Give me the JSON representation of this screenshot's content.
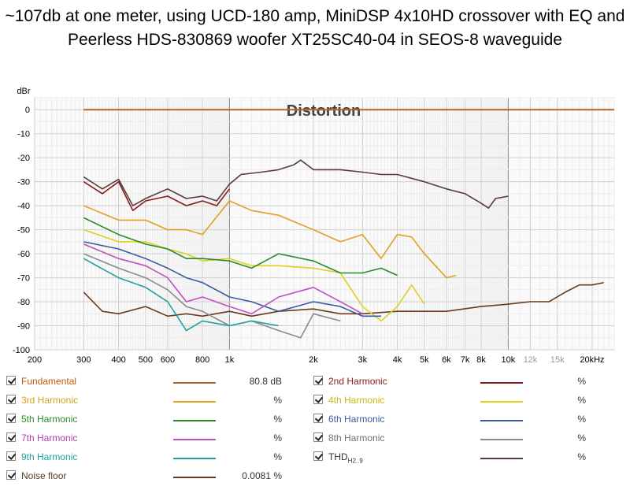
{
  "title": "~107db at one meter, using UCD-180 amp, MiniDSP 4x10HD crossover with EQ and Peerless HDS-830869 woofer XT25SC40-04 in SEOS-8 waveguide",
  "chart_data": {
    "type": "line",
    "title": "Distortion",
    "ylabel": "dBr",
    "xlabel": "Hz",
    "xscale": "log",
    "xlim": [
      200,
      24000
    ],
    "ylim": [
      -100,
      5
    ],
    "y_ticks": [
      0,
      -10,
      -20,
      -30,
      -40,
      -50,
      -60,
      -70,
      -80,
      -90,
      -100
    ],
    "x_ticks": [
      {
        "value": 200,
        "label": "200"
      },
      {
        "value": 300,
        "label": "300"
      },
      {
        "value": 400,
        "label": "400"
      },
      {
        "value": 500,
        "label": "500"
      },
      {
        "value": 600,
        "label": "600"
      },
      {
        "value": 800,
        "label": "800"
      },
      {
        "value": 1000,
        "label": "1k"
      },
      {
        "value": 2000,
        "label": "2k"
      },
      {
        "value": 3000,
        "label": "3k"
      },
      {
        "value": 4000,
        "label": "4k"
      },
      {
        "value": 5000,
        "label": "5k"
      },
      {
        "value": 6000,
        "label": "6k"
      },
      {
        "value": 7000,
        "label": "7k"
      },
      {
        "value": 8000,
        "label": "8k"
      },
      {
        "value": 10000,
        "label": "10k"
      },
      {
        "value": 12000,
        "label": "12k"
      },
      {
        "value": 15000,
        "label": "15k"
      },
      {
        "value": 20000,
        "label": "20kHz"
      }
    ],
    "series": [
      {
        "name": "Fundamental",
        "color": "#b0642a",
        "x": [
          300,
          24000
        ],
        "y": [
          0,
          0
        ]
      },
      {
        "name": "Noise floor",
        "color": "#6b3a1e",
        "x": [
          300,
          350,
          400,
          500,
          600,
          700,
          800,
          1000,
          1200,
          1500,
          2000,
          2500,
          3000,
          4000,
          5000,
          6000,
          8000,
          10000,
          12000,
          14000,
          16000,
          18000,
          20000,
          22000
        ],
        "y": [
          -76,
          -84,
          -85,
          -82,
          -86,
          -85,
          -86,
          -84,
          -86,
          -84,
          -83,
          -85,
          -85,
          -84,
          -84,
          -84,
          -82,
          -81,
          -80,
          -80,
          -76,
          -73,
          -73,
          -72
        ]
      },
      {
        "name": "THD",
        "color": "#5a3a3a",
        "x": [
          300,
          350,
          400,
          450,
          500,
          600,
          700,
          800,
          900,
          1000,
          1100,
          1300,
          1500,
          1700,
          1800,
          2000,
          2500,
          3000,
          3500,
          4000,
          5000,
          6000,
          7000,
          8000,
          8500,
          9000,
          10000
        ],
        "y": [
          -28,
          -33,
          -29,
          -40,
          -37,
          -33,
          -37,
          -36,
          -38,
          -31,
          -27,
          -26,
          -25,
          -23,
          -21,
          -25,
          -25,
          -26,
          -27,
          -27,
          -30,
          -33,
          -35,
          -39,
          -41,
          -37,
          -36
        ]
      },
      {
        "name": "2nd Harmonic",
        "color": "#8b1a1a",
        "x": [
          300,
          350,
          400,
          450,
          500,
          600,
          700,
          800,
          900,
          1000
        ],
        "y": [
          -30,
          -35,
          -30,
          -42,
          -38,
          -36,
          -40,
          -38,
          -40,
          -33
        ]
      },
      {
        "name": "3rd Harmonic",
        "color": "#e0a020",
        "x": [
          300,
          400,
          500,
          600,
          700,
          800,
          1000,
          1200,
          1500,
          2000,
          2500,
          3000,
          3500,
          4000,
          4500,
          5000,
          6000,
          6500
        ],
        "y": [
          -40,
          -46,
          -46,
          -50,
          -50,
          -52,
          -38,
          -42,
          -44,
          -50,
          -55,
          -52,
          -62,
          -52,
          -53,
          -60,
          -70,
          -69
        ]
      },
      {
        "name": "4th Harmonic",
        "color": "#e0d020",
        "x": [
          300,
          400,
          500,
          600,
          700,
          800,
          1000,
          1200,
          1500,
          2000,
          2500,
          3000,
          3500,
          4000,
          4500,
          5000
        ],
        "y": [
          -50,
          -55,
          -55,
          -58,
          -60,
          -63,
          -62,
          -65,
          -65,
          -66,
          -68,
          -82,
          -88,
          -82,
          -73,
          -81
        ]
      },
      {
        "name": "5th Harmonic",
        "color": "#2a8a2a",
        "x": [
          300,
          400,
          500,
          600,
          700,
          800,
          1000,
          1200,
          1500,
          2000,
          2500,
          3000,
          3500,
          4000
        ],
        "y": [
          -45,
          -52,
          -56,
          -58,
          -62,
          -62,
          -63,
          -66,
          -60,
          -63,
          -68,
          -68,
          -66,
          -69
        ]
      },
      {
        "name": "6th Harmonic",
        "color": "#3a5aa0",
        "x": [
          300,
          400,
          500,
          600,
          700,
          800,
          1000,
          1200,
          1500,
          2000,
          2500,
          3000,
          3500
        ],
        "y": [
          -55,
          -58,
          -62,
          -66,
          -70,
          -72,
          -78,
          -80,
          -84,
          -80,
          -82,
          -86,
          -86
        ]
      },
      {
        "name": "7th Harmonic",
        "color": "#c050c0",
        "x": [
          300,
          400,
          500,
          600,
          700,
          800,
          1000,
          1200,
          1500,
          2000,
          2500,
          3000
        ],
        "y": [
          -56,
          -62,
          -65,
          -70,
          -80,
          -78,
          -82,
          -85,
          -78,
          -74,
          -80,
          -85
        ]
      },
      {
        "name": "8th Harmonic",
        "color": "#8a8a8a",
        "x": [
          300,
          400,
          500,
          600,
          700,
          800,
          1000,
          1200,
          1500,
          1800,
          2000,
          2500
        ],
        "y": [
          -60,
          -66,
          -70,
          -75,
          -82,
          -84,
          -90,
          -88,
          -92,
          -95,
          -85,
          -88
        ]
      },
      {
        "name": "9th Harmonic",
        "color": "#20a0a0",
        "x": [
          300,
          400,
          500,
          600,
          700,
          800,
          1000,
          1200,
          1500
        ],
        "y": [
          -62,
          -70,
          -74,
          -80,
          -92,
          -88,
          -90,
          -88,
          -90
        ]
      }
    ]
  },
  "legend": {
    "left": [
      {
        "name": "Fundamental",
        "value": "80.8 dB",
        "color": "#b0642a",
        "text_color": "#c05a10"
      },
      {
        "name": "3rd Harmonic",
        "value": "%",
        "color": "#e0a020",
        "text_color": "#d4a020"
      },
      {
        "name": "5th Harmonic",
        "value": "%",
        "color": "#2a8a2a",
        "text_color": "#2a8a2a"
      },
      {
        "name": "7th Harmonic",
        "value": "%",
        "color": "#c050c0",
        "text_color": "#b040b0"
      },
      {
        "name": "9th Harmonic",
        "value": "%",
        "color": "#20a0a0",
        "text_color": "#20a0a0"
      },
      {
        "name": "Noise floor",
        "value": "0.0081 %",
        "color": "#6b3a1e",
        "text_color": "#5a3a1a"
      }
    ],
    "right": [
      {
        "name": "2nd Harmonic",
        "value": "%",
        "color": "#8b1a1a",
        "text_color": "#8b1a1a"
      },
      {
        "name": "4th Harmonic",
        "value": "%",
        "color": "#e0d020",
        "text_color": "#c8b818"
      },
      {
        "name": "6th Harmonic",
        "value": "%",
        "color": "#3a5aa0",
        "text_color": "#3a5aa0"
      },
      {
        "name": "8th Harmonic",
        "value": "%",
        "color": "#8a8a8a",
        "text_color": "#707070"
      },
      {
        "name": "THD",
        "sub": "H2..9",
        "value": "%",
        "color": "#5a3a3a",
        "text_color": "#333333"
      }
    ]
  }
}
